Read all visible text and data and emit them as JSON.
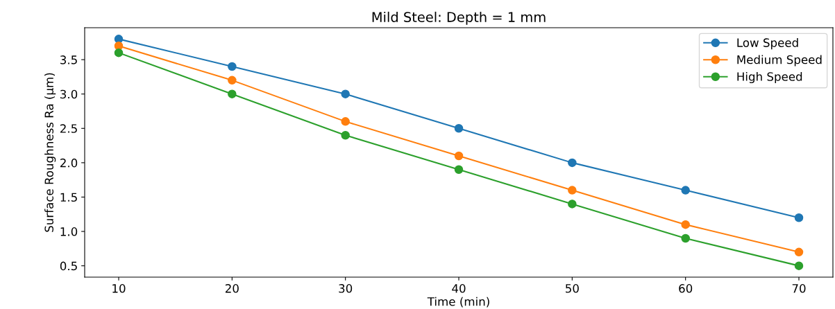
{
  "chart_data": {
    "type": "line",
    "title": "Mild Steel: Depth = 1 mm",
    "xlabel": "Time (min)",
    "ylabel": "Surface Roughness Ra (µm)",
    "x": [
      10,
      20,
      30,
      40,
      50,
      60,
      70
    ],
    "series": [
      {
        "name": "Low Speed",
        "color": "#1f77b4",
        "values": [
          3.8,
          3.4,
          3.0,
          2.5,
          2.0,
          1.6,
          1.2
        ]
      },
      {
        "name": "Medium Speed",
        "color": "#ff7f0e",
        "values": [
          3.7,
          3.2,
          2.6,
          2.1,
          1.6,
          1.1,
          0.7
        ]
      },
      {
        "name": "High Speed",
        "color": "#2ca02c",
        "values": [
          3.6,
          3.0,
          2.4,
          1.9,
          1.4,
          0.9,
          0.5
        ]
      }
    ],
    "xlim": [
      7,
      73
    ],
    "xticks": [
      10,
      20,
      30,
      40,
      50,
      60,
      70
    ],
    "ylim": [
      0.335,
      3.965
    ],
    "yticks": [
      {
        "value": 0.5,
        "label": "0.5"
      },
      {
        "value": 1.0,
        "label": "1.0"
      },
      {
        "value": 1.5,
        "label": "1.5"
      },
      {
        "value": 2.0,
        "label": "2.0"
      },
      {
        "value": 2.5,
        "label": "2.5"
      },
      {
        "value": 3.0,
        "label": "3.0"
      },
      {
        "value": 3.5,
        "label": "3.5"
      }
    ],
    "marker": "circle",
    "line_style": "solid",
    "legend": "top right",
    "grid": false
  }
}
